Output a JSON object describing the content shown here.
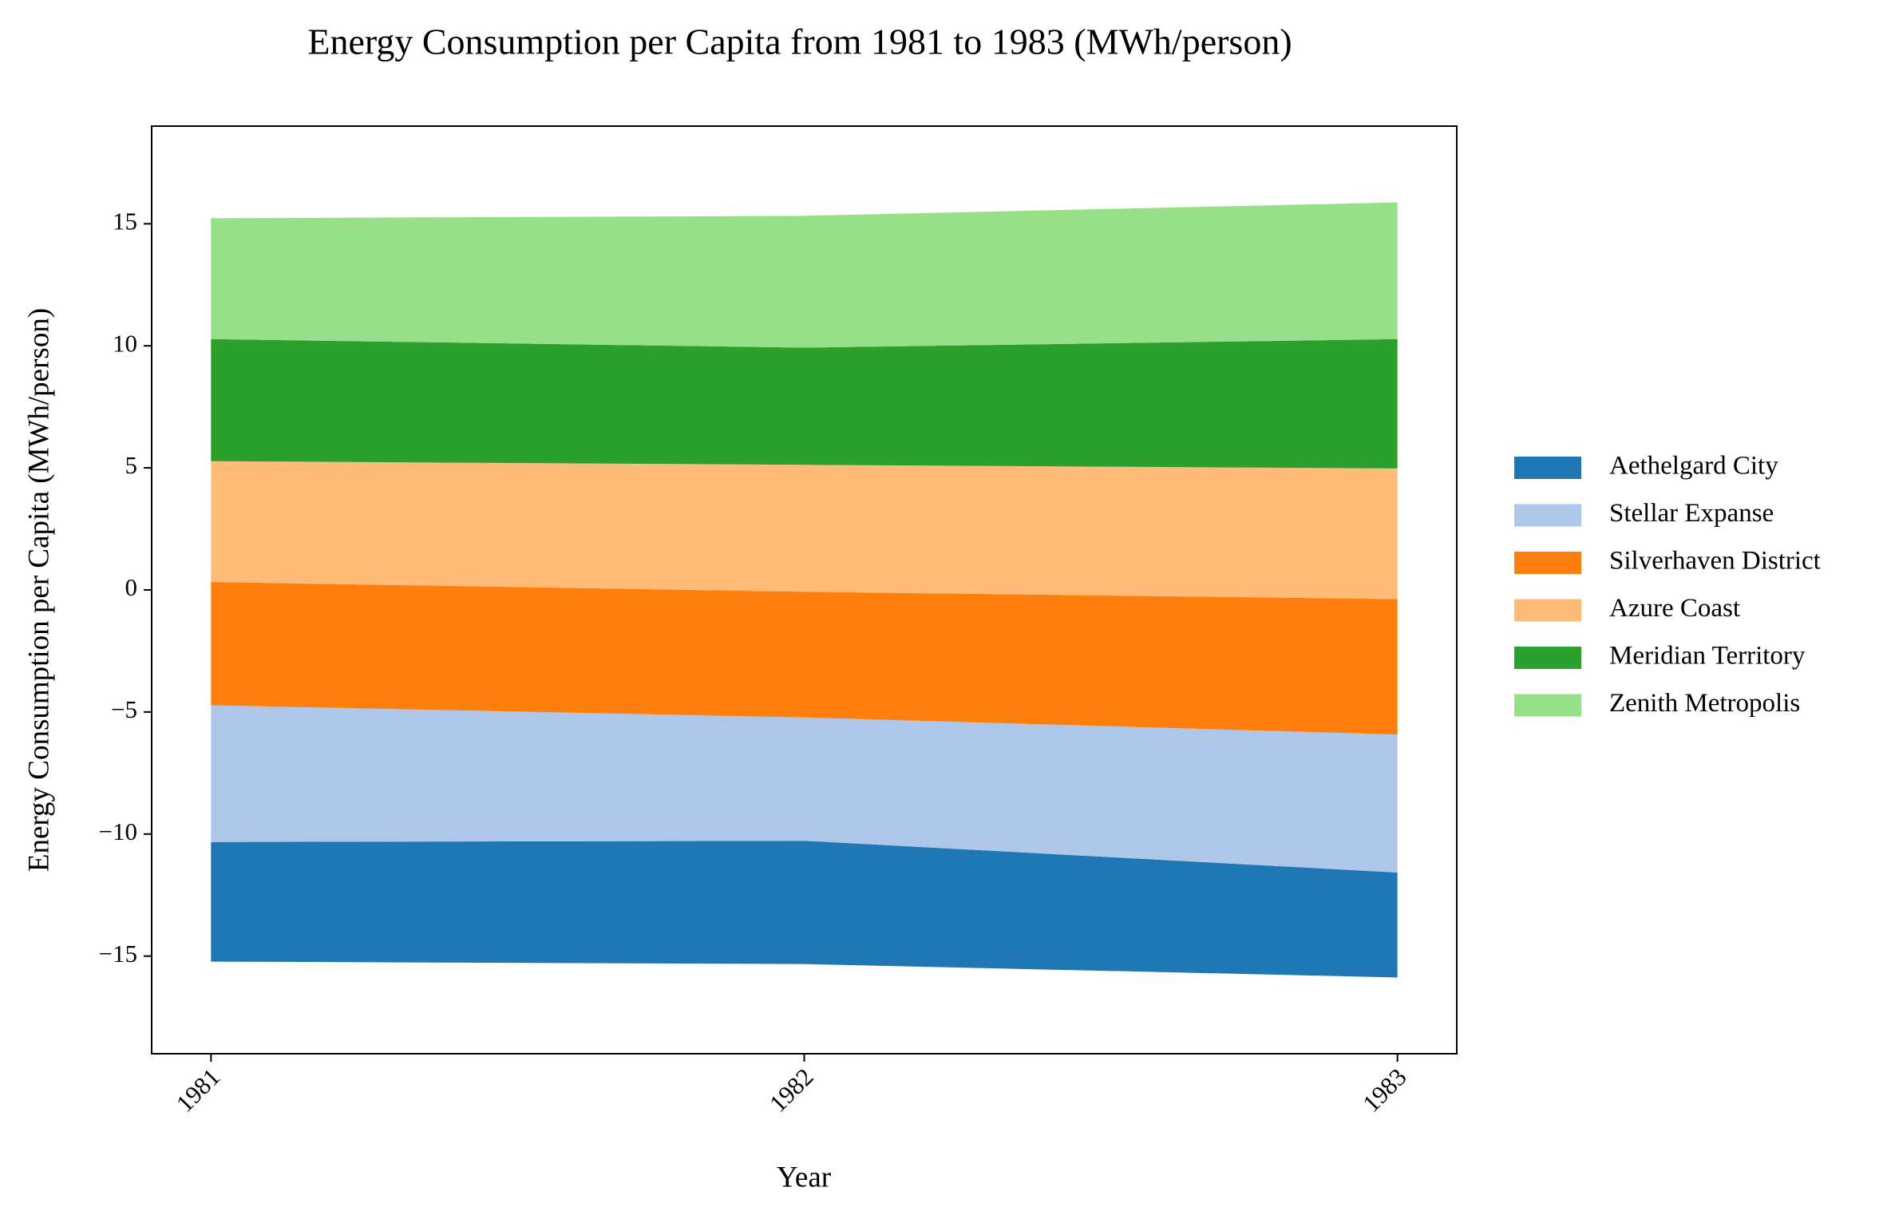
{
  "chart_data": {
    "type": "streamgraph",
    "title": "Energy Consumption per Capita from 1981 to 1983 (MWh/person)",
    "x_label": "Year",
    "y_label": "Energy Consumption per Capita (MWh/person)",
    "x": [
      1981,
      1982,
      1983
    ],
    "xlim": [
      1980.9,
      1983.1
    ],
    "xticks": [
      1981,
      1982,
      1983
    ],
    "ylim": [
      -19,
      19
    ],
    "yticks": [
      {
        "value": -15,
        "label": "−15"
      },
      {
        "value": -10,
        "label": "−10"
      },
      {
        "value": -5,
        "label": "−5"
      },
      0,
      5,
      10,
      15
    ],
    "baseline": "sym",
    "legend": "outside right",
    "series": [
      {
        "name": "Aethelgard City",
        "color": "#1f77b4",
        "values": [
          4.9,
          5.05,
          4.3
        ]
      },
      {
        "name": "Stellar Expanse",
        "color": "#aec7e8",
        "values": [
          5.6,
          5.05,
          5.65
        ]
      },
      {
        "name": "Silverhaven District",
        "color": "#ff7f0e",
        "values": [
          5.05,
          5.15,
          5.55
        ]
      },
      {
        "name": "Azure Coast",
        "color": "#ffbb78",
        "values": [
          4.95,
          5.2,
          5.35
        ]
      },
      {
        "name": "Meridian Territory",
        "color": "#2ca02c",
        "values": [
          5.0,
          4.8,
          5.3
        ]
      },
      {
        "name": "Zenith Metropolis",
        "color": "#98df8a",
        "values": [
          4.95,
          5.4,
          5.6
        ]
      }
    ]
  }
}
